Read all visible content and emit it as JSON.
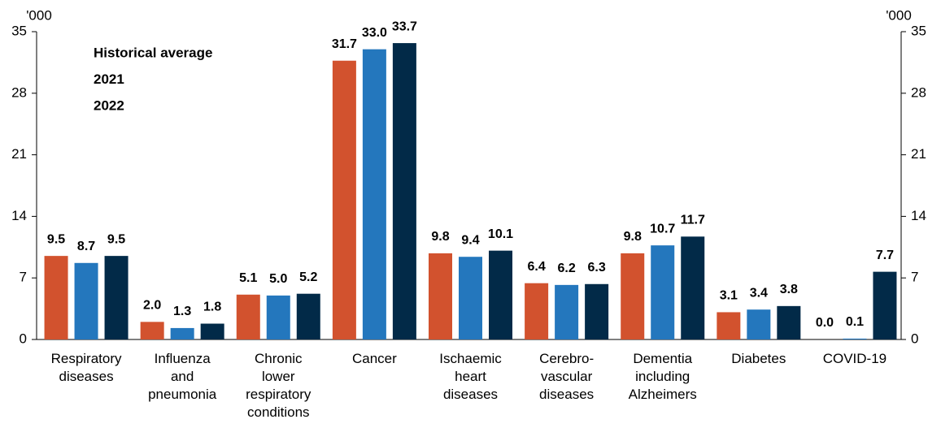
{
  "chart_data": {
    "type": "bar",
    "y_unit": "'000",
    "y2_unit": "'000",
    "categories": [
      "Respiratory\ndiseases",
      "Influenza\nand\npneumonia",
      "Chronic\nlower\nrespiratory\nconditions",
      "Cancer",
      "Ischaemic\nheart\ndiseases",
      "Cerebro-\nvascular\ndiseases",
      "Dementia\nincluding\nAlzheimers",
      "Diabetes",
      "COVID-19"
    ],
    "series": [
      {
        "name": "Historical average",
        "color": "#d2522e",
        "values": [
          9.5,
          2.0,
          5.1,
          31.7,
          9.8,
          6.4,
          9.8,
          3.1,
          0.0
        ],
        "value_labels": [
          "9.5",
          "2.0",
          "5.1",
          "31.7",
          "9.8",
          "6.4",
          "9.8",
          "3.1",
          "0.0"
        ]
      },
      {
        "name": "2021",
        "color": "#2477bd",
        "values": [
          8.7,
          1.3,
          5.0,
          33.0,
          9.4,
          6.2,
          10.7,
          3.4,
          0.1
        ],
        "value_labels": [
          "8.7",
          "1.3",
          "5.0",
          "33.0",
          "9.4",
          "6.2",
          "10.7",
          "3.4",
          "0.1"
        ]
      },
      {
        "name": "2022",
        "color": "#022a48",
        "values": [
          9.5,
          1.8,
          5.2,
          33.7,
          10.1,
          6.3,
          11.7,
          3.8,
          7.7
        ],
        "value_labels": [
          "9.5",
          "1.8",
          "5.2",
          "33.7",
          "10.1",
          "6.3",
          "11.7",
          "3.8",
          "7.7"
        ]
      }
    ],
    "ylim": [
      0,
      35
    ],
    "yticks": [
      0,
      7,
      14,
      21,
      28,
      35
    ],
    "y2lim": [
      0,
      35
    ],
    "y2ticks": [
      0,
      7,
      14,
      21,
      28,
      35
    ],
    "legend": "top-left"
  }
}
